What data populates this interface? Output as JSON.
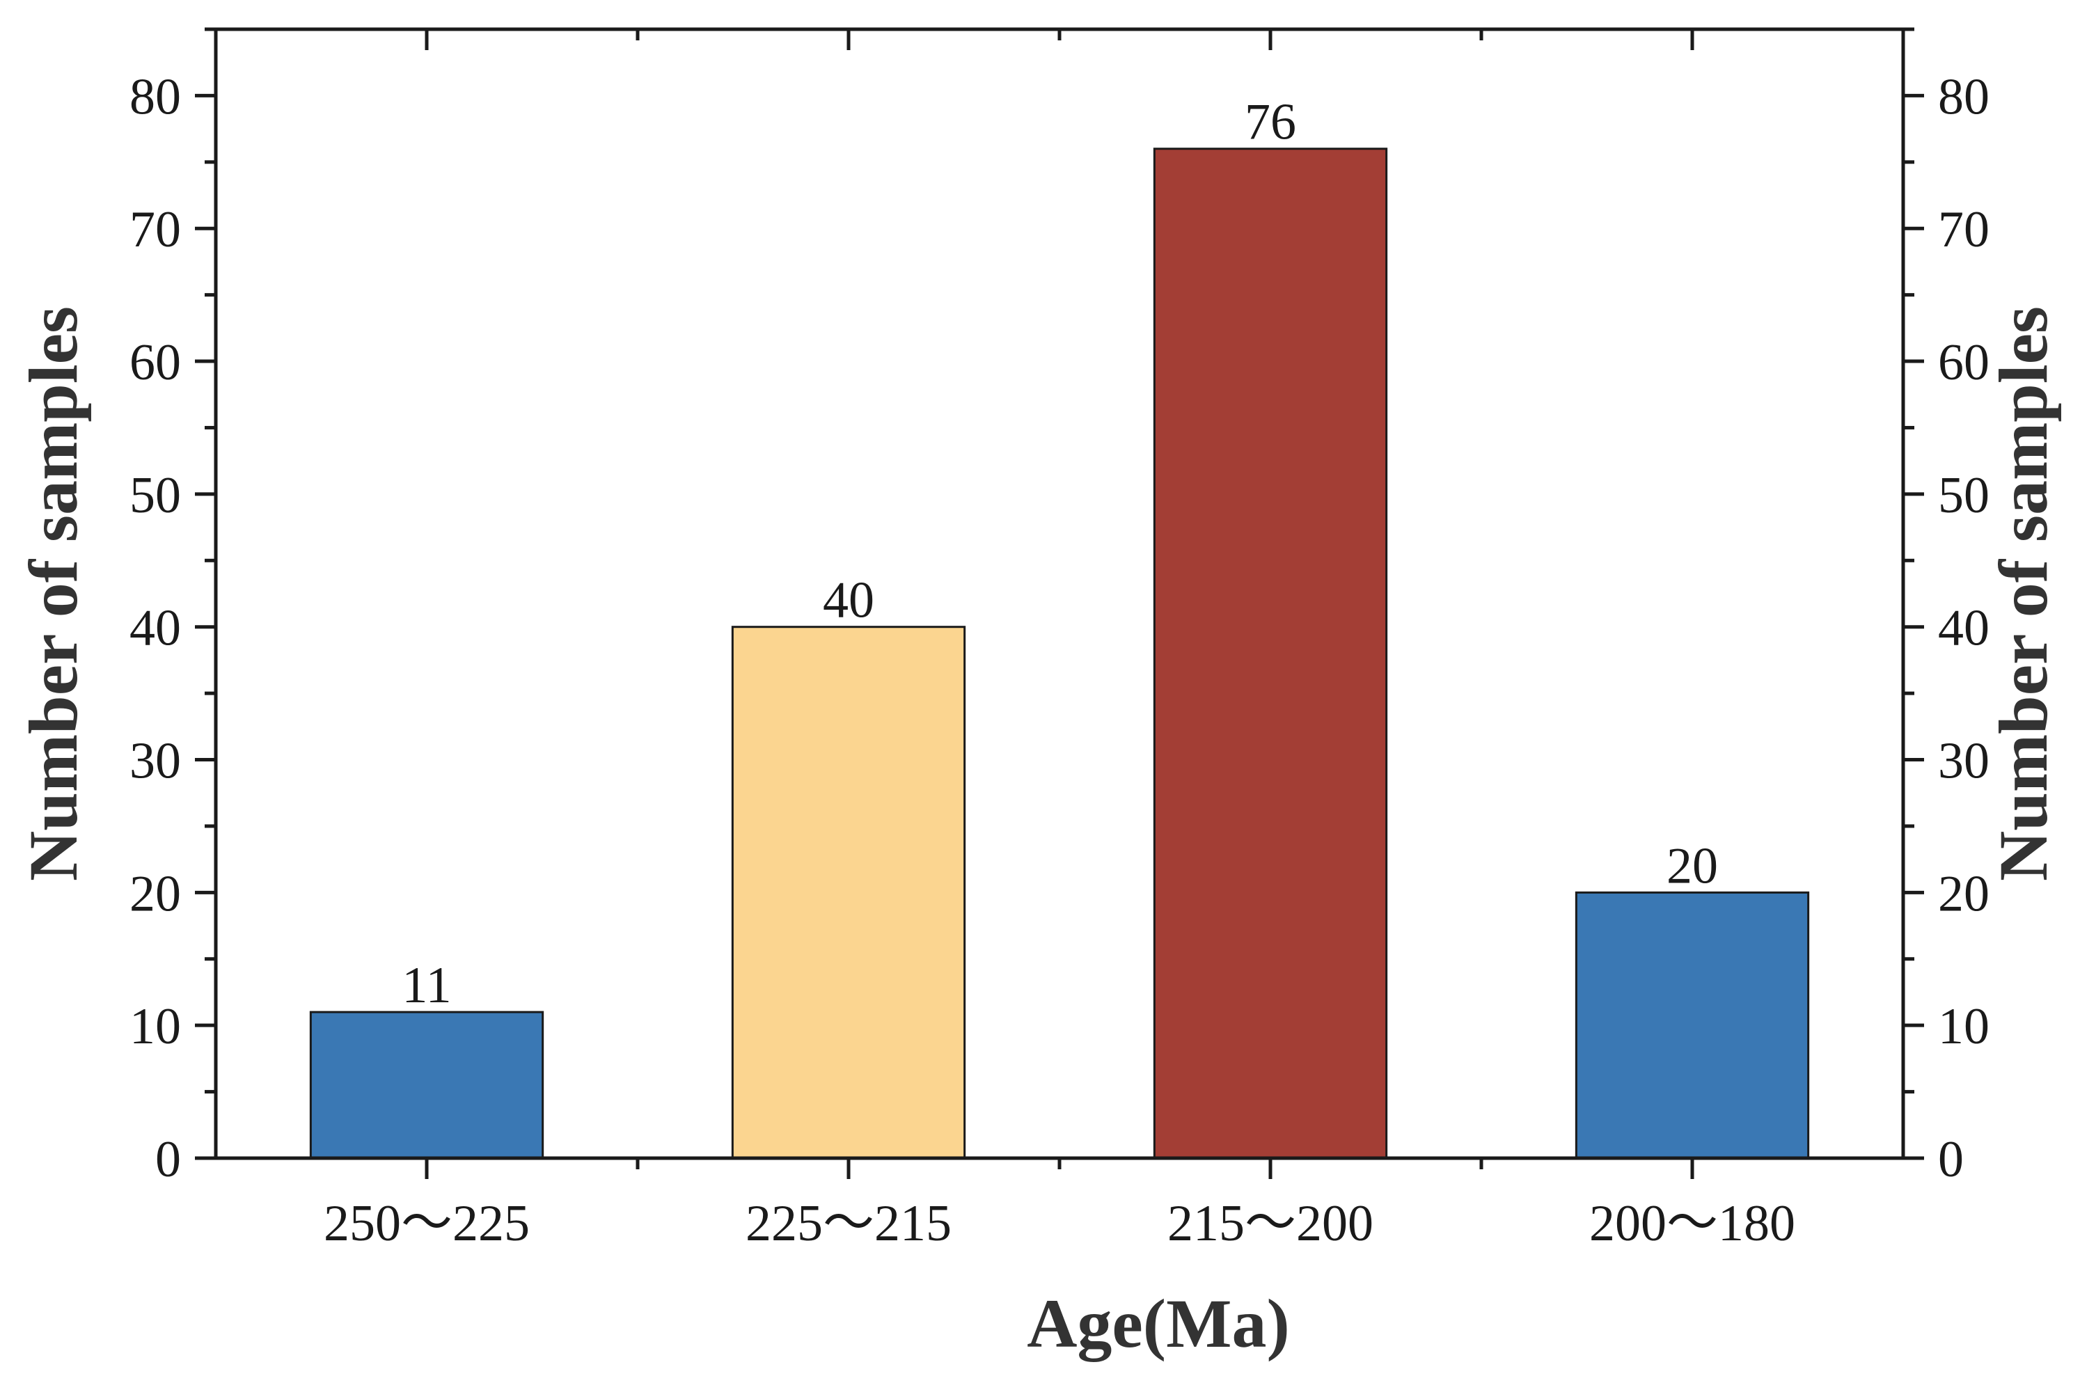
{
  "chart_data": {
    "type": "bar",
    "title": "",
    "categories": [
      "250～225",
      "225～215",
      "215～200",
      "200～180"
    ],
    "values": [
      11,
      40,
      76,
      20
    ],
    "data_labels": [
      "11",
      "40",
      "76",
      "20"
    ],
    "colors": [
      "#3a78b4",
      "#fbd590",
      "#a33e35",
      "#3a78b4"
    ],
    "xlabel": "Age(Ma)",
    "ylabel": "Number of samples",
    "ylabel_right": "Number of samples",
    "ylim": [
      0,
      85
    ],
    "yticks": [
      0,
      10,
      20,
      30,
      40,
      50,
      60,
      70,
      80
    ],
    "ytick_labels": [
      "0",
      "10",
      "20",
      "30",
      "40",
      "50",
      "60",
      "70",
      "80"
    ],
    "grid": false,
    "legend": "none"
  }
}
